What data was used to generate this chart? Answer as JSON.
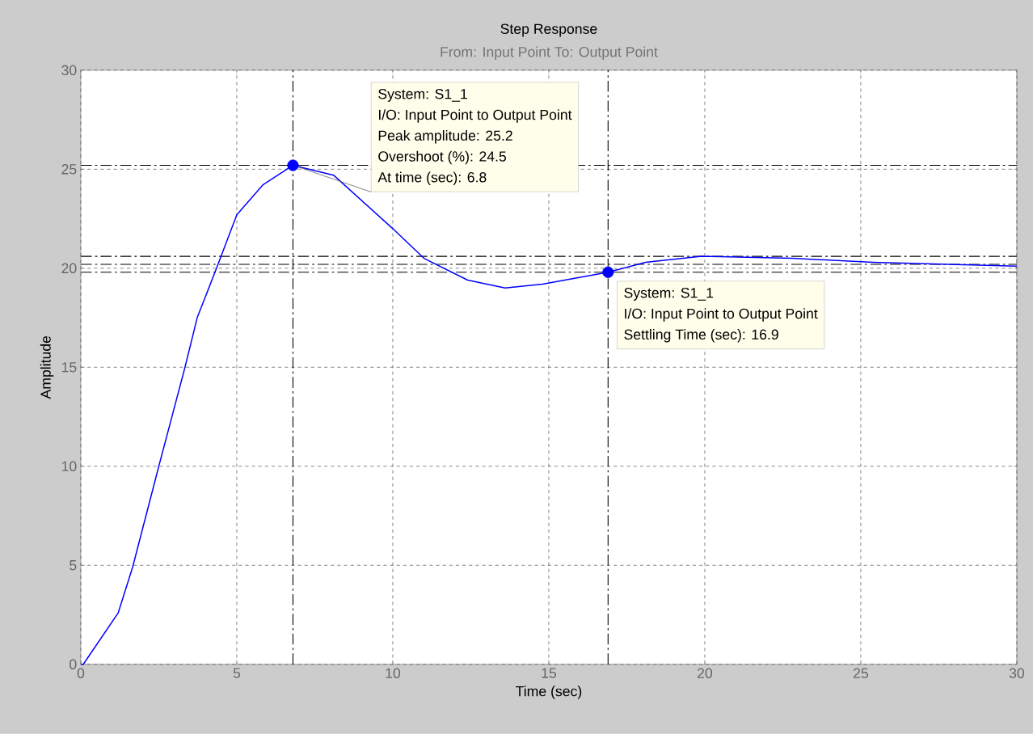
{
  "chart_data": {
    "type": "line",
    "title": "Step Response",
    "subtitle": "From: Input Point  To: Output Point",
    "xlabel": "Time (sec)",
    "ylabel": "Amplitude",
    "xlim": [
      0,
      30
    ],
    "ylim": [
      0,
      30
    ],
    "xticks": [
      0,
      5,
      10,
      15,
      20,
      25,
      30
    ],
    "yticks": [
      0,
      5,
      10,
      15,
      20,
      25,
      30
    ],
    "grid": true,
    "series": [
      {
        "color": "#0000ff",
        "marker": "none",
        "x": [
          0,
          0.08,
          1.2,
          1.66,
          2.5,
          3.34,
          3.73,
          4.35,
          5.0,
          5.83,
          6.8,
          8.1,
          10.0,
          11.0,
          12.4,
          13.6,
          14.8,
          16.9,
          18.1,
          19.9,
          22.8,
          25.4,
          30
        ],
        "values": [
          0,
          0,
          2.6,
          4.9,
          10.0,
          15.0,
          17.5,
          20.0,
          22.7,
          24.2,
          25.2,
          24.7,
          22.0,
          20.5,
          19.4,
          19.0,
          19.2,
          19.8,
          20.3,
          20.6,
          20.5,
          20.3,
          20.1
        ]
      },
      {
        "type": "scatter",
        "color": "#0000ff",
        "marker": "circle",
        "x": [
          6.8,
          16.9
        ],
        "values": [
          25.2,
          19.8
        ]
      }
    ],
    "ref_lines": [
      {
        "axis": "y",
        "value": 25.2,
        "color": "#000000",
        "line_style": "dashed"
      },
      {
        "axis": "x",
        "value": 6.8,
        "color": "#000000",
        "line_style": "dashed"
      },
      {
        "axis": "x",
        "value": 16.9,
        "color": "#000000",
        "line_style": "dashed"
      },
      {
        "axis": "y",
        "value": 20.6,
        "color": "#000000",
        "line_style": "dashed"
      },
      {
        "axis": "y",
        "value": 20.2,
        "color": "#000000",
        "line_style": "dashed"
      },
      {
        "axis": "y",
        "value": 19.8,
        "color": "#000000",
        "line_style": "dashed"
      }
    ],
    "annotations": [
      "System: S1_1",
      "I/O: Input Point to Output Point",
      "Peak amplitude: 25.2",
      "Overshoot (%): 24.5",
      {
        "text": "At time (sec): 6.8",
        "x": 6.8,
        "y": 25.2
      },
      {
        "text": "System: S1_1",
        "x": 16.9,
        "y": 19.8
      },
      "I/O: Input Point to Output Point",
      "Settling Time (sec): 16.9"
    ]
  }
}
